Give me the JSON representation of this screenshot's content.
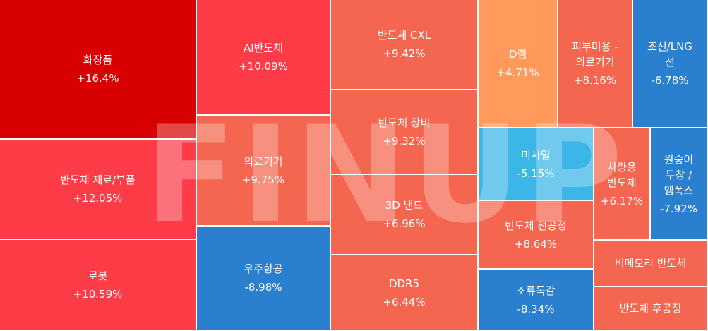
{
  "chart_data": {
    "type": "treemap",
    "watermark": "FINUP",
    "colors": {
      "deep_red": "#d80000",
      "red": "#fd3c47",
      "coral": "#f56650",
      "orange": "#ff9a5c",
      "blue": "#2a7fcf",
      "sky": "#3bb6e6"
    },
    "items": [
      {
        "name": "화장품",
        "change": "+16.4%",
        "value": 16.4,
        "color": "#d80000"
      },
      {
        "name": "반도체 재료/부품",
        "change": "+12.05%",
        "value": 12.05,
        "color": "#fd3c47"
      },
      {
        "name": "로봇",
        "change": "+10.59%",
        "value": 10.59,
        "color": "#fd3c47"
      },
      {
        "name": "AI반도체",
        "change": "+10.09%",
        "value": 10.09,
        "color": "#fd3c47"
      },
      {
        "name": "의료기기",
        "change": "+9.75%",
        "value": 9.75,
        "color": "#f56650"
      },
      {
        "name": "우주항공",
        "change": "-8.98%",
        "value": -8.98,
        "color": "#2a7fcf"
      },
      {
        "name": "반도체 CXL",
        "change": "+9.42%",
        "value": 9.42,
        "color": "#f56650"
      },
      {
        "name": "반도체 장비",
        "change": "+9.32%",
        "value": 9.32,
        "color": "#f56650"
      },
      {
        "name": "3D 낸드",
        "change": "+6.96%",
        "value": 6.96,
        "color": "#f56650"
      },
      {
        "name": "DDR5",
        "change": "+6.44%",
        "value": 6.44,
        "color": "#f56650"
      },
      {
        "name": "D램",
        "change": "+4.71%",
        "value": 4.71,
        "color": "#ff9a5c"
      },
      {
        "name": "피부미용 -\n의료기기",
        "change": "+8.16%",
        "value": 8.16,
        "color": "#f56650"
      },
      {
        "name": "조선/LNG\n선",
        "change": "-6.78%",
        "value": -6.78,
        "color": "#2a7fcf"
      },
      {
        "name": "미사일",
        "change": "-5.15%",
        "value": -5.15,
        "color": "#3bb6e6"
      },
      {
        "name": "차량용\n반도체",
        "change": "+6.17%",
        "value": 6.17,
        "color": "#f56650"
      },
      {
        "name": "원숭이\n두창 /\n엠폭스",
        "change": "-7.92%",
        "value": -7.92,
        "color": "#2a7fcf"
      },
      {
        "name": "반도체 전공정",
        "change": "+8.64%",
        "value": 8.64,
        "color": "#f56650"
      },
      {
        "name": "비메모리 반도체",
        "change": "",
        "value": null,
        "color": "#f56650"
      },
      {
        "name": "조류독감",
        "change": "-8.34%",
        "value": -8.34,
        "color": "#2a7fcf"
      },
      {
        "name": "반도체 후공정",
        "change": "",
        "value": null,
        "color": "#f56650"
      }
    ]
  }
}
